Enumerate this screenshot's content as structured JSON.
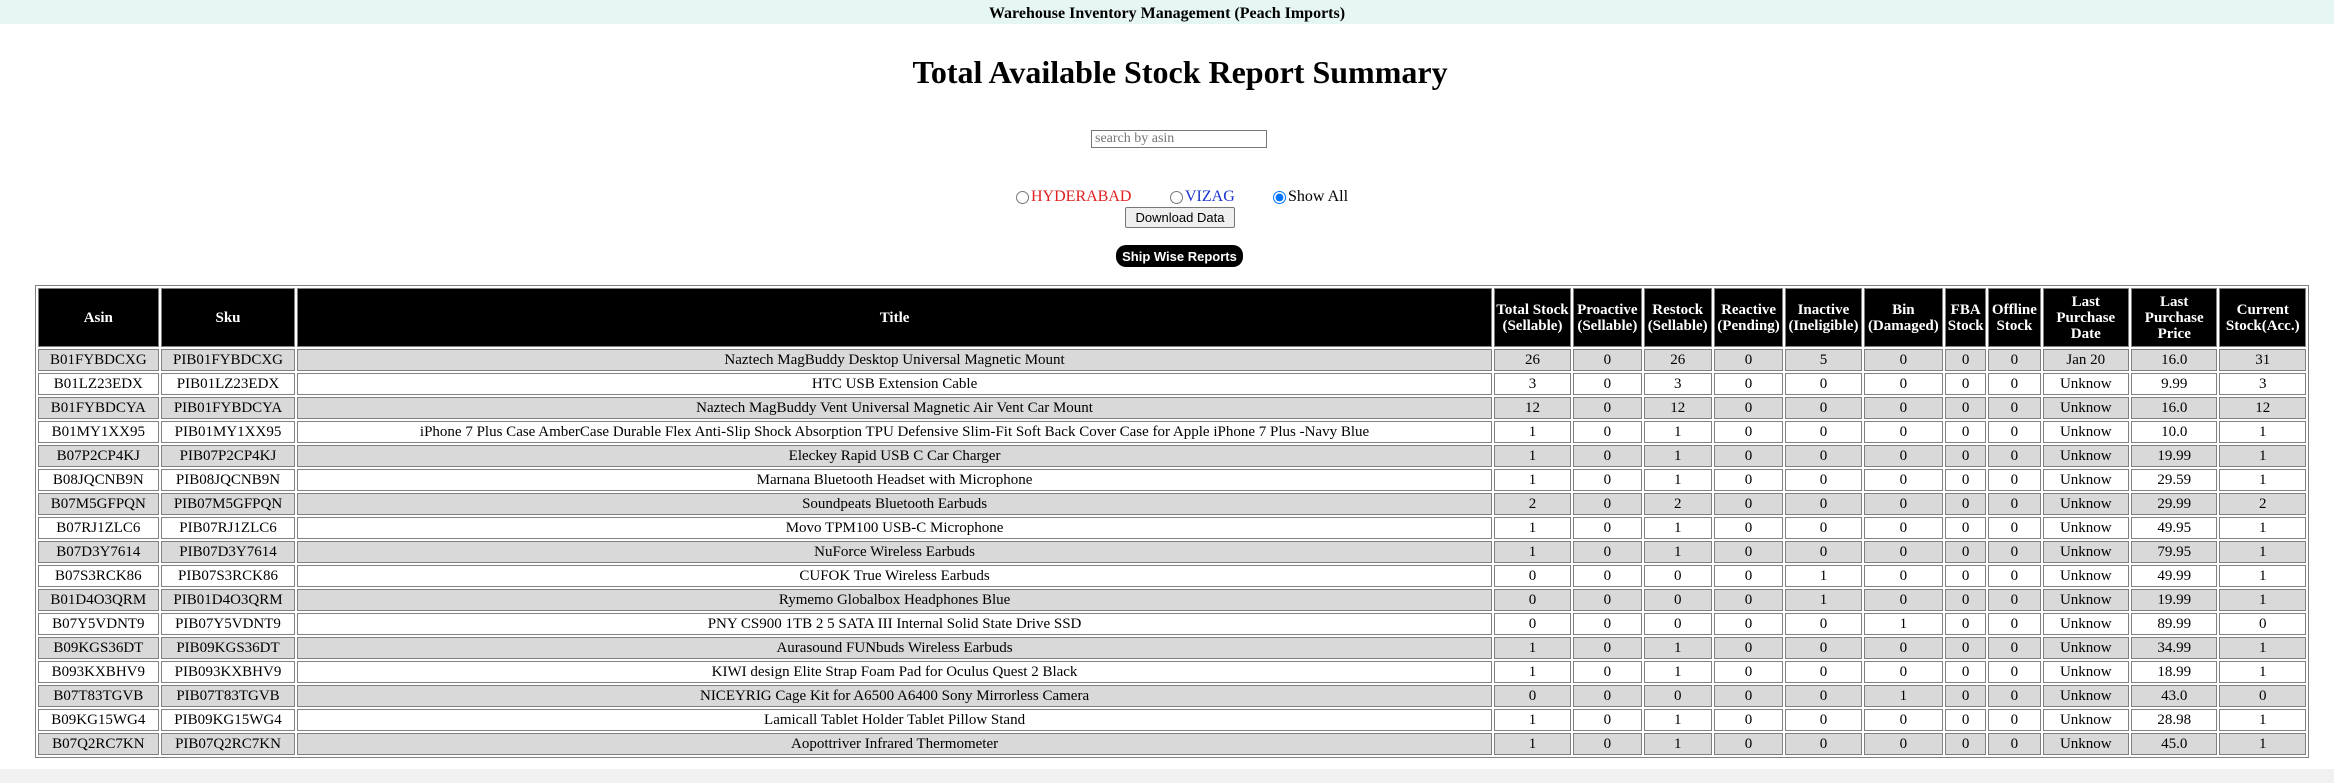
{
  "header": {
    "app_title": "Warehouse Inventory Management (Peach Imports)"
  },
  "page_title": "Total Available Stock Report Summary",
  "search": {
    "placeholder": "search by asin",
    "value": ""
  },
  "filters": [
    {
      "label": "HYDERABAD",
      "checked": false,
      "color": "#e02020"
    },
    {
      "label": "VIZAG",
      "checked": false,
      "color": "#1a33cc"
    },
    {
      "label": "Show All",
      "checked": true,
      "color": "#000000"
    }
  ],
  "buttons": {
    "download_label": "Download Data",
    "ship_label": "Ship Wise Reports"
  },
  "table": {
    "columns": [
      "Asin",
      "Sku",
      "Title",
      "Total Stock (Sellable)",
      "Proactive (Sellable)",
      "Restock (Sellable)",
      "Reactive (Pending)",
      "Inactive (Ineligible)",
      "Bin (Damaged)",
      "FBA Stock",
      "Offline Stock",
      "Last Purchase Date",
      "Last Purchase Price",
      "Current Stock(Acc.)"
    ],
    "rows": [
      [
        "B01FYBDCXG",
        "PIB01FYBDCXG",
        "Naztech MagBuddy Desktop Universal Magnetic Mount",
        "26",
        "0",
        "26",
        "0",
        "5",
        "0",
        "0",
        "0",
        "Jan 20",
        "16.0",
        "31"
      ],
      [
        "B01LZ23EDX",
        "PIB01LZ23EDX",
        "HTC USB Extension Cable",
        "3",
        "0",
        "3",
        "0",
        "0",
        "0",
        "0",
        "0",
        "Unknow",
        "9.99",
        "3"
      ],
      [
        "B01FYBDCYA",
        "PIB01FYBDCYA",
        "Naztech MagBuddy Vent Universal Magnetic Air Vent Car Mount",
        "12",
        "0",
        "12",
        "0",
        "0",
        "0",
        "0",
        "0",
        "Unknow",
        "16.0",
        "12"
      ],
      [
        "B01MY1XX95",
        "PIB01MY1XX95",
        "iPhone 7 Plus Case AmberCase Durable Flex Anti-Slip Shock Absorption TPU Defensive Slim-Fit Soft Back Cover Case for Apple iPhone 7 Plus -Navy Blue",
        "1",
        "0",
        "1",
        "0",
        "0",
        "0",
        "0",
        "0",
        "Unknow",
        "10.0",
        "1"
      ],
      [
        "B07P2CP4KJ",
        "PIB07P2CP4KJ",
        "Eleckey Rapid USB C Car Charger",
        "1",
        "0",
        "1",
        "0",
        "0",
        "0",
        "0",
        "0",
        "Unknow",
        "19.99",
        "1"
      ],
      [
        "B08JQCNB9N",
        "PIB08JQCNB9N",
        "Marnana Bluetooth Headset with Microphone",
        "1",
        "0",
        "1",
        "0",
        "0",
        "0",
        "0",
        "0",
        "Unknow",
        "29.59",
        "1"
      ],
      [
        "B07M5GFPQN",
        "PIB07M5GFPQN",
        "Soundpeats Bluetooth Earbuds",
        "2",
        "0",
        "2",
        "0",
        "0",
        "0",
        "0",
        "0",
        "Unknow",
        "29.99",
        "2"
      ],
      [
        "B07RJ1ZLC6",
        "PIB07RJ1ZLC6",
        "Movo TPM100 USB-C Microphone",
        "1",
        "0",
        "1",
        "0",
        "0",
        "0",
        "0",
        "0",
        "Unknow",
        "49.95",
        "1"
      ],
      [
        "B07D3Y7614",
        "PIB07D3Y7614",
        "NuForce Wireless Earbuds",
        "1",
        "0",
        "1",
        "0",
        "0",
        "0",
        "0",
        "0",
        "Unknow",
        "79.95",
        "1"
      ],
      [
        "B07S3RCK86",
        "PIB07S3RCK86",
        "CUFOK True Wireless Earbuds",
        "0",
        "0",
        "0",
        "0",
        "1",
        "0",
        "0",
        "0",
        "Unknow",
        "49.99",
        "1"
      ],
      [
        "B01D4O3QRM",
        "PIB01D4O3QRM",
        "Rymemo Globalbox Headphones Blue",
        "0",
        "0",
        "0",
        "0",
        "1",
        "0",
        "0",
        "0",
        "Unknow",
        "19.99",
        "1"
      ],
      [
        "B07Y5VDNT9",
        "PIB07Y5VDNT9",
        "PNY CS900 1TB 2 5 SATA III Internal Solid State Drive SSD",
        "0",
        "0",
        "0",
        "0",
        "0",
        "1",
        "0",
        "0",
        "Unknow",
        "89.99",
        "0"
      ],
      [
        "B09KGS36DT",
        "PIB09KGS36DT",
        "Aurasound FUNbuds Wireless Earbuds",
        "1",
        "0",
        "1",
        "0",
        "0",
        "0",
        "0",
        "0",
        "Unknow",
        "34.99",
        "1"
      ],
      [
        "B093KXBHV9",
        "PIB093KXBHV9",
        "KIWI design Elite Strap Foam Pad for Oculus Quest 2 Black",
        "1",
        "0",
        "1",
        "0",
        "0",
        "0",
        "0",
        "0",
        "Unknow",
        "18.99",
        "1"
      ],
      [
        "B07T83TGVB",
        "PIB07T83TGVB",
        "NICEYRIG Cage Kit for A6500 A6400 Sony Mirrorless Camera",
        "0",
        "0",
        "0",
        "0",
        "0",
        "1",
        "0",
        "0",
        "Unknow",
        "43.0",
        "0"
      ],
      [
        "B09KG15WG4",
        "PIB09KG15WG4",
        "Lamicall Tablet Holder Tablet Pillow Stand",
        "1",
        "0",
        "1",
        "0",
        "0",
        "0",
        "0",
        "0",
        "Unknow",
        "28.98",
        "1"
      ],
      [
        "B07Q2RC7KN",
        "PIB07Q2RC7KN",
        "Aopottriver Infrared Thermometer",
        "1",
        "0",
        "1",
        "0",
        "0",
        "0",
        "0",
        "0",
        "Unknow",
        "45.0",
        "1"
      ]
    ]
  }
}
